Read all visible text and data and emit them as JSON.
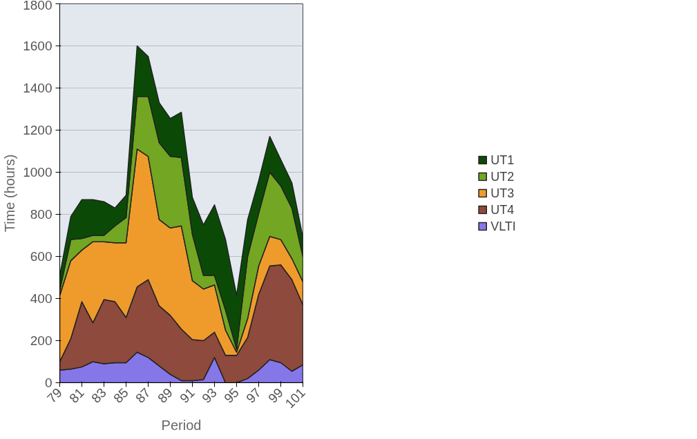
{
  "chart_data": {
    "type": "area",
    "stacked": true,
    "xlabel": "Period",
    "ylabel": "Time (hours)",
    "x": [
      79,
      80,
      81,
      82,
      83,
      84,
      85,
      86,
      87,
      88,
      89,
      90,
      91,
      92,
      93,
      94,
      95,
      96,
      97,
      98,
      99,
      100,
      101
    ],
    "xlim": [
      79,
      101
    ],
    "xticks": [
      79,
      81,
      83,
      85,
      87,
      89,
      91,
      93,
      95,
      97,
      99,
      101
    ],
    "ylim": [
      0,
      1800
    ],
    "yticks": [
      0,
      200,
      400,
      600,
      800,
      1000,
      1200,
      1400,
      1600,
      1800
    ],
    "grid": "y",
    "legend": "right",
    "series": [
      {
        "name": "VLTI",
        "color": "#8677e8",
        "values": [
          60,
          65,
          75,
          100,
          90,
          95,
          95,
          145,
          120,
          80,
          40,
          10,
          10,
          15,
          120,
          0,
          0,
          20,
          60,
          110,
          95,
          55,
          85
        ]
      },
      {
        "name": "UT4",
        "color": "#8e4a3c",
        "values": [
          40,
          145,
          310,
          185,
          305,
          290,
          215,
          310,
          370,
          285,
          280,
          245,
          195,
          185,
          120,
          130,
          130,
          195,
          360,
          445,
          465,
          435,
          285
        ]
      },
      {
        "name": "UT3",
        "color": "#ef9b2c",
        "values": [
          315,
          370,
          245,
          385,
          275,
          280,
          355,
          655,
          585,
          410,
          415,
          490,
          280,
          245,
          225,
          120,
          15,
          90,
          135,
          140,
          120,
          100,
          110
        ]
      },
      {
        "name": "UT2",
        "color": "#73a622",
        "values": [
          25,
          100,
          55,
          30,
          30,
          80,
          120,
          250,
          285,
          365,
          340,
          325,
          220,
          65,
          45,
          95,
          15,
          295,
          250,
          305,
          255,
          240,
          120
        ]
      },
      {
        "name": "UT1",
        "color": "#0b4a06",
        "values": [
          70,
          110,
          185,
          170,
          160,
          85,
          105,
          240,
          190,
          190,
          180,
          215,
          175,
          240,
          335,
          335,
          255,
          175,
          155,
          170,
          125,
          120,
          90
        ]
      }
    ]
  }
}
